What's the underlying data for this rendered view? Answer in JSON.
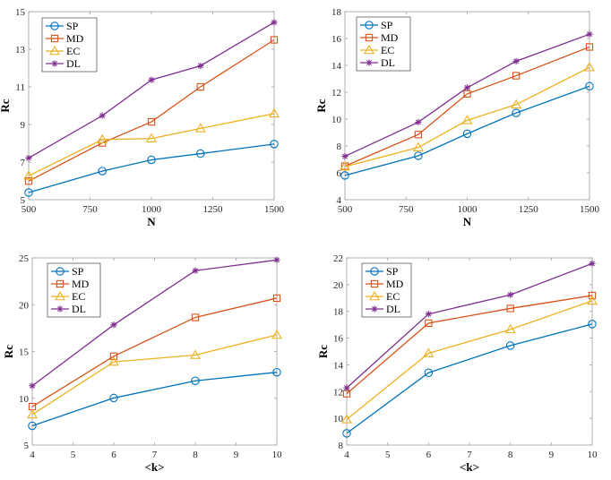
{
  "colors": {
    "SP": "#0072BD",
    "MD": "#D95319",
    "EC": "#EDB120",
    "DL": "#7E2F8E",
    "axis": "#262626",
    "frame": "#a0a0a0"
  },
  "chart_data": [
    {
      "type": "line",
      "title": "",
      "xlabel": "N",
      "ylabel": "Rc",
      "x": [
        500,
        800,
        1000,
        1200,
        1500
      ],
      "xlim": [
        500,
        1500
      ],
      "ylim": [
        5,
        15
      ],
      "xticks": [
        500,
        750,
        1000,
        1250,
        1500
      ],
      "yticks": [
        5,
        7,
        9,
        11,
        13,
        15
      ],
      "grid": false,
      "legend_position": "top-left",
      "series": [
        {
          "name": "SP",
          "marker": "circle",
          "values": [
            5.38,
            6.52,
            7.12,
            7.45,
            7.96
          ]
        },
        {
          "name": "MD",
          "marker": "square",
          "values": [
            5.99,
            8.02,
            9.14,
            11.0,
            13.5
          ]
        },
        {
          "name": "EC",
          "marker": "triangle",
          "values": [
            6.27,
            8.2,
            8.25,
            8.79,
            9.58
          ]
        },
        {
          "name": "DL",
          "marker": "asterisk",
          "values": [
            7.22,
            9.47,
            11.37,
            12.12,
            14.43
          ]
        }
      ]
    },
    {
      "type": "line",
      "title": "",
      "xlabel": "N",
      "ylabel": "Rc",
      "x": [
        500,
        800,
        1000,
        1200,
        1500
      ],
      "xlim": [
        500,
        1500
      ],
      "ylim": [
        4,
        18
      ],
      "xticks": [
        500,
        750,
        1000,
        1250,
        1500
      ],
      "yticks": [
        4,
        6,
        8,
        10,
        12,
        14,
        16,
        18
      ],
      "grid": false,
      "legend_position": "top-left",
      "series": [
        {
          "name": "SP",
          "marker": "circle",
          "values": [
            5.81,
            7.27,
            8.91,
            10.46,
            12.45
          ]
        },
        {
          "name": "MD",
          "marker": "square",
          "values": [
            6.5,
            8.85,
            11.88,
            13.23,
            15.37
          ]
        },
        {
          "name": "EC",
          "marker": "triangle",
          "values": [
            6.46,
            7.89,
            9.91,
            11.08,
            13.85
          ]
        },
        {
          "name": "DL",
          "marker": "asterisk",
          "values": [
            7.23,
            9.77,
            12.34,
            14.31,
            16.32
          ]
        }
      ]
    },
    {
      "type": "line",
      "title": "",
      "xlabel": "<k>",
      "ylabel": "Rc",
      "x": [
        4,
        6,
        8,
        10
      ],
      "xlim": [
        4,
        10
      ],
      "ylim": [
        5,
        25
      ],
      "xticks": [
        4,
        5,
        6,
        7,
        8,
        9,
        10
      ],
      "yticks": [
        5,
        10,
        15,
        20,
        25
      ],
      "grid": false,
      "legend_position": "top-left",
      "series": [
        {
          "name": "SP",
          "marker": "circle",
          "values": [
            7.06,
            10.03,
            11.87,
            12.78
          ]
        },
        {
          "name": "MD",
          "marker": "square",
          "values": [
            9.11,
            14.49,
            18.64,
            20.7
          ]
        },
        {
          "name": "EC",
          "marker": "triangle",
          "values": [
            8.26,
            13.89,
            14.62,
            16.77
          ]
        },
        {
          "name": "DL",
          "marker": "asterisk",
          "values": [
            11.33,
            17.85,
            23.64,
            24.78
          ]
        }
      ]
    },
    {
      "type": "line",
      "title": "",
      "xlabel": "<k>",
      "ylabel": "Rc",
      "x": [
        4,
        6,
        8,
        10
      ],
      "xlim": [
        4,
        10
      ],
      "ylim": [
        8,
        22
      ],
      "xticks": [
        4,
        5,
        6,
        7,
        8,
        9,
        10
      ],
      "yticks": [
        8,
        10,
        12,
        14,
        16,
        18,
        20,
        22
      ],
      "grid": false,
      "legend_position": "top-left",
      "series": [
        {
          "name": "SP",
          "marker": "circle",
          "values": [
            8.88,
            13.41,
            15.44,
            17.05
          ]
        },
        {
          "name": "MD",
          "marker": "square",
          "values": [
            11.84,
            17.12,
            18.22,
            19.19
          ]
        },
        {
          "name": "EC",
          "marker": "triangle",
          "values": [
            9.92,
            14.87,
            16.65,
            18.79
          ]
        },
        {
          "name": "DL",
          "marker": "asterisk",
          "values": [
            12.28,
            17.8,
            19.24,
            21.58
          ]
        }
      ]
    }
  ]
}
